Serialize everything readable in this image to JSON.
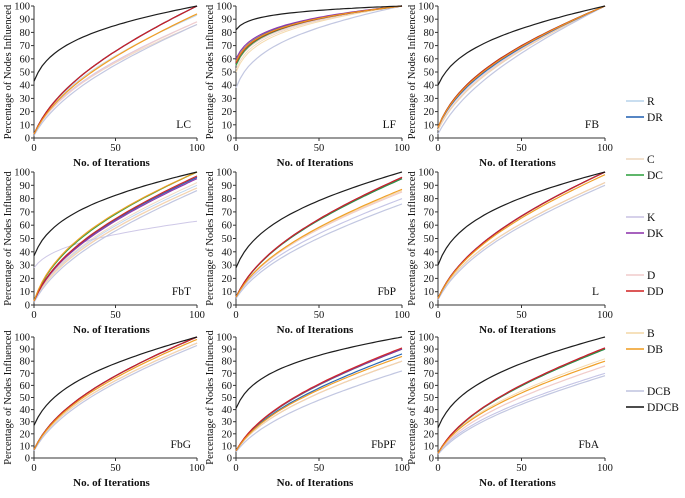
{
  "colors": {
    "R": "#b7d3ec",
    "DR": "#1f5fb0",
    "C": "#eed7bd",
    "DC": "#2a9d3a",
    "K": "#c9c2e4",
    "DK": "#8a2fa8",
    "D": "#f1cccc",
    "DD": "#d02020",
    "B": "#f4d7a6",
    "DB": "#ef9b1e",
    "DCB": "#bfc4df",
    "DDCB": "#111111"
  },
  "legend": [
    {
      "key": "R",
      "label": "R"
    },
    {
      "key": "DR",
      "label": "DR"
    },
    {
      "key": "C",
      "label": "C"
    },
    {
      "key": "DC",
      "label": "DC"
    },
    {
      "key": "K",
      "label": "K"
    },
    {
      "key": "DK",
      "label": "DK"
    },
    {
      "key": "D",
      "label": "D"
    },
    {
      "key": "DD",
      "label": "DD"
    },
    {
      "key": "B",
      "label": "B"
    },
    {
      "key": "DB",
      "label": "DB"
    },
    {
      "key": "DCB",
      "label": "DCB"
    },
    {
      "key": "DDCB",
      "label": "DDCB"
    }
  ],
  "chart_data": [
    {
      "type": "line",
      "title": "LC",
      "xlabel": "No. of Iterations",
      "ylabel": "Percentage of Nodes Influenced",
      "xlim": [
        0,
        100
      ],
      "ylim": [
        0,
        100
      ],
      "xticks": [
        0,
        50,
        100
      ],
      "yticks": [
        0,
        10,
        20,
        30,
        40,
        50,
        60,
        70,
        80,
        90,
        100
      ],
      "series": [
        {
          "name": "R",
          "start": 3,
          "end": 93,
          "k": 1.4
        },
        {
          "name": "DR",
          "start": 3,
          "end": 100,
          "k": 1.25
        },
        {
          "name": "C",
          "start": 3,
          "end": 86,
          "k": 1.3
        },
        {
          "name": "DC",
          "start": 3,
          "end": 100,
          "k": 1.25
        },
        {
          "name": "K",
          "start": 3,
          "end": 88,
          "k": 1.3
        },
        {
          "name": "DK",
          "start": 3,
          "end": 100,
          "k": 1.25
        },
        {
          "name": "D",
          "start": 3,
          "end": 88,
          "k": 1.2
        },
        {
          "name": "DD",
          "start": 3,
          "end": 100,
          "k": 1.25
        },
        {
          "name": "B",
          "start": 3,
          "end": 94,
          "k": 1.25
        },
        {
          "name": "DB",
          "start": 3,
          "end": 94,
          "k": 1.2
        },
        {
          "name": "DCB",
          "start": 2,
          "end": 86,
          "k": 1.1
        },
        {
          "name": "DDCB",
          "start": 43,
          "end": 100,
          "k": 2.6
        }
      ]
    },
    {
      "type": "line",
      "title": "LF",
      "xlabel": "No. of Iterations",
      "ylabel": "Percentage of Nodes Influenced",
      "xlim": [
        0,
        100
      ],
      "ylim": [
        0,
        100
      ],
      "xticks": [
        0,
        50,
        100
      ],
      "yticks": [
        0,
        10,
        20,
        30,
        40,
        50,
        60,
        70,
        80,
        90,
        100
      ],
      "series": [
        {
          "name": "R",
          "start": 55,
          "end": 100,
          "k": 3.0
        },
        {
          "name": "DR",
          "start": 58,
          "end": 100,
          "k": 3.2
        },
        {
          "name": "C",
          "start": 52,
          "end": 100,
          "k": 3.0
        },
        {
          "name": "DC",
          "start": 55,
          "end": 100,
          "k": 3.2
        },
        {
          "name": "K",
          "start": 55,
          "end": 100,
          "k": 3.0
        },
        {
          "name": "DK",
          "start": 60,
          "end": 100,
          "k": 3.2
        },
        {
          "name": "D",
          "start": 55,
          "end": 100,
          "k": 3.0
        },
        {
          "name": "DD",
          "start": 57,
          "end": 100,
          "k": 3.1
        },
        {
          "name": "B",
          "start": 50,
          "end": 100,
          "k": 2.9
        },
        {
          "name": "DB",
          "start": 58,
          "end": 100,
          "k": 3.1
        },
        {
          "name": "DCB",
          "start": 38,
          "end": 100,
          "k": 2.5
        },
        {
          "name": "DDCB",
          "start": 82,
          "end": 100,
          "k": 4.5
        }
      ]
    },
    {
      "type": "line",
      "title": "FB",
      "xlabel": "No. of Iterations",
      "ylabel": "Percentage of Nodes Influenced",
      "xlim": [
        0,
        100
      ],
      "ylim": [
        0,
        100
      ],
      "xticks": [
        0,
        50,
        100
      ],
      "yticks": [
        0,
        10,
        20,
        30,
        40,
        50,
        60,
        70,
        80,
        90,
        100
      ],
      "series": [
        {
          "name": "R",
          "start": 8,
          "end": 100,
          "k": 1.3
        },
        {
          "name": "DR",
          "start": 8,
          "end": 100,
          "k": 1.4
        },
        {
          "name": "C",
          "start": 8,
          "end": 100,
          "k": 1.5
        },
        {
          "name": "DC",
          "start": 8,
          "end": 100,
          "k": 1.6
        },
        {
          "name": "K",
          "start": 6,
          "end": 100,
          "k": 1.2
        },
        {
          "name": "DK",
          "start": 8,
          "end": 100,
          "k": 1.5
        },
        {
          "name": "D",
          "start": 6,
          "end": 100,
          "k": 1.3
        },
        {
          "name": "DD",
          "start": 8,
          "end": 100,
          "k": 1.6
        },
        {
          "name": "B",
          "start": 6,
          "end": 100,
          "k": 1.2
        },
        {
          "name": "DB",
          "start": 8,
          "end": 100,
          "k": 1.5
        },
        {
          "name": "DCB",
          "start": 3,
          "end": 100,
          "k": 1.05
        },
        {
          "name": "DDCB",
          "start": 40,
          "end": 100,
          "k": 2.2
        }
      ]
    },
    {
      "type": "line",
      "title": "FbT",
      "xlabel": "No. of Iterations",
      "ylabel": "Percentage of Nodes Influenced",
      "xlim": [
        0,
        100
      ],
      "ylim": [
        0,
        100
      ],
      "xticks": [
        0,
        50,
        100
      ],
      "yticks": [
        0,
        10,
        20,
        30,
        40,
        50,
        60,
        70,
        80,
        90,
        100
      ],
      "series": [
        {
          "name": "R",
          "start": 3,
          "end": 90,
          "k": 1.3
        },
        {
          "name": "DR",
          "start": 3,
          "end": 96,
          "k": 1.4
        },
        {
          "name": "C",
          "start": 3,
          "end": 92,
          "k": 1.3
        },
        {
          "name": "DC",
          "start": 3,
          "end": 100,
          "k": 1.6
        },
        {
          "name": "K",
          "start": 28,
          "end": 63,
          "k": 2.2
        },
        {
          "name": "DK",
          "start": 3,
          "end": 95,
          "k": 1.35
        },
        {
          "name": "D",
          "start": 3,
          "end": 88,
          "k": 1.25
        },
        {
          "name": "DD",
          "start": 3,
          "end": 97,
          "k": 1.4
        },
        {
          "name": "B",
          "start": 3,
          "end": 88,
          "k": 1.2
        },
        {
          "name": "DB",
          "start": 3,
          "end": 100,
          "k": 1.7
        },
        {
          "name": "DCB",
          "start": 2,
          "end": 86,
          "k": 1.15
        },
        {
          "name": "DDCB",
          "start": 37,
          "end": 100,
          "k": 2.3
        }
      ]
    },
    {
      "type": "line",
      "title": "FbP",
      "xlabel": "No. of Iterations",
      "ylabel": "Percentage of Nodes Influenced",
      "xlim": [
        0,
        100
      ],
      "ylim": [
        0,
        100
      ],
      "xticks": [
        0,
        50,
        100
      ],
      "yticks": [
        0,
        10,
        20,
        30,
        40,
        50,
        60,
        70,
        80,
        90,
        100
      ],
      "series": [
        {
          "name": "R",
          "start": 6,
          "end": 80,
          "k": 1.2
        },
        {
          "name": "DR",
          "start": 6,
          "end": 95,
          "k": 1.3
        },
        {
          "name": "C",
          "start": 6,
          "end": 85,
          "k": 1.25
        },
        {
          "name": "DC",
          "start": 6,
          "end": 95,
          "k": 1.3
        },
        {
          "name": "K",
          "start": 6,
          "end": 80,
          "k": 1.2
        },
        {
          "name": "DK",
          "start": 6,
          "end": 96,
          "k": 1.3
        },
        {
          "name": "D",
          "start": 6,
          "end": 85,
          "k": 1.25
        },
        {
          "name": "DD",
          "start": 6,
          "end": 96,
          "k": 1.3
        },
        {
          "name": "B",
          "start": 6,
          "end": 86,
          "k": 1.25
        },
        {
          "name": "DB",
          "start": 6,
          "end": 87,
          "k": 1.25
        },
        {
          "name": "DCB",
          "start": 5,
          "end": 76,
          "k": 1.15
        },
        {
          "name": "DDCB",
          "start": 28,
          "end": 100,
          "k": 2.0
        }
      ]
    },
    {
      "type": "line",
      "title": "L",
      "xlabel": "No. of Iterations",
      "ylabel": "Percentage of Nodes Influenced",
      "xlim": [
        0,
        100
      ],
      "ylim": [
        0,
        100
      ],
      "xticks": [
        0,
        50,
        100
      ],
      "yticks": [
        0,
        10,
        20,
        30,
        40,
        50,
        60,
        70,
        80,
        90,
        100
      ],
      "series": [
        {
          "name": "R",
          "start": 5,
          "end": 92,
          "k": 1.25
        },
        {
          "name": "DR",
          "start": 5,
          "end": 100,
          "k": 1.3
        },
        {
          "name": "C",
          "start": 5,
          "end": 92,
          "k": 1.25
        },
        {
          "name": "DC",
          "start": 5,
          "end": 100,
          "k": 1.3
        },
        {
          "name": "K",
          "start": 5,
          "end": 92,
          "k": 1.25
        },
        {
          "name": "DK",
          "start": 5,
          "end": 100,
          "k": 1.32
        },
        {
          "name": "D",
          "start": 5,
          "end": 92,
          "k": 1.25
        },
        {
          "name": "DD",
          "start": 5,
          "end": 100,
          "k": 1.3
        },
        {
          "name": "B",
          "start": 5,
          "end": 92,
          "k": 1.25
        },
        {
          "name": "DB",
          "start": 5,
          "end": 98,
          "k": 1.28
        },
        {
          "name": "DCB",
          "start": 4,
          "end": 90,
          "k": 1.2
        },
        {
          "name": "DDCB",
          "start": 30,
          "end": 100,
          "k": 2.3
        }
      ]
    },
    {
      "type": "line",
      "title": "FbG",
      "xlabel": "No. of Iterations",
      "ylabel": "Percentage of Nodes Influenced",
      "xlim": [
        0,
        100
      ],
      "ylim": [
        0,
        100
      ],
      "xticks": [
        0,
        50,
        100
      ],
      "yticks": [
        0,
        10,
        20,
        30,
        40,
        50,
        60,
        70,
        80,
        90,
        100
      ],
      "series": [
        {
          "name": "R",
          "start": 7,
          "end": 95,
          "k": 1.25
        },
        {
          "name": "DR",
          "start": 7,
          "end": 100,
          "k": 1.35
        },
        {
          "name": "C",
          "start": 7,
          "end": 95,
          "k": 1.25
        },
        {
          "name": "DC",
          "start": 7,
          "end": 100,
          "k": 1.35
        },
        {
          "name": "K",
          "start": 7,
          "end": 95,
          "k": 1.25
        },
        {
          "name": "DK",
          "start": 7,
          "end": 100,
          "k": 1.35
        },
        {
          "name": "D",
          "start": 7,
          "end": 95,
          "k": 1.25
        },
        {
          "name": "DD",
          "start": 7,
          "end": 100,
          "k": 1.35
        },
        {
          "name": "B",
          "start": 7,
          "end": 95,
          "k": 1.25
        },
        {
          "name": "DB",
          "start": 7,
          "end": 98,
          "k": 1.3
        },
        {
          "name": "DCB",
          "start": 6,
          "end": 93,
          "k": 1.2
        },
        {
          "name": "DDCB",
          "start": 27,
          "end": 100,
          "k": 2.0
        }
      ]
    },
    {
      "type": "line",
      "title": "FbPF",
      "xlabel": "No. of Iterations",
      "ylabel": "Percentage of Nodes Influenced",
      "xlim": [
        0,
        100
      ],
      "ylim": [
        0,
        100
      ],
      "xticks": [
        0,
        50,
        100
      ],
      "yticks": [
        0,
        10,
        20,
        30,
        40,
        50,
        60,
        70,
        80,
        90,
        100
      ],
      "series": [
        {
          "name": "R",
          "start": 6,
          "end": 80,
          "k": 1.2
        },
        {
          "name": "DR",
          "start": 6,
          "end": 86,
          "k": 1.25
        },
        {
          "name": "C",
          "start": 6,
          "end": 80,
          "k": 1.2
        },
        {
          "name": "DC",
          "start": 6,
          "end": 90,
          "k": 1.25
        },
        {
          "name": "K",
          "start": 6,
          "end": 80,
          "k": 1.2
        },
        {
          "name": "DK",
          "start": 6,
          "end": 90,
          "k": 1.28
        },
        {
          "name": "D",
          "start": 6,
          "end": 80,
          "k": 1.2
        },
        {
          "name": "DD",
          "start": 6,
          "end": 91,
          "k": 1.28
        },
        {
          "name": "B",
          "start": 6,
          "end": 80,
          "k": 1.2
        },
        {
          "name": "DB",
          "start": 6,
          "end": 84,
          "k": 1.25
        },
        {
          "name": "DCB",
          "start": 5,
          "end": 72,
          "k": 1.15
        },
        {
          "name": "DDCB",
          "start": 41,
          "end": 100,
          "k": 2.6
        }
      ]
    },
    {
      "type": "line",
      "title": "FbA",
      "xlabel": "No. of Iterations",
      "ylabel": "Percentage of Nodes Influenced",
      "xlim": [
        0,
        100
      ],
      "ylim": [
        0,
        100
      ],
      "xticks": [
        0,
        50,
        100
      ],
      "yticks": [
        0,
        10,
        20,
        30,
        40,
        50,
        60,
        70,
        80,
        90,
        100
      ],
      "series": [
        {
          "name": "R",
          "start": 4,
          "end": 70,
          "k": 1.15
        },
        {
          "name": "DR",
          "start": 4,
          "end": 90,
          "k": 1.25
        },
        {
          "name": "C",
          "start": 4,
          "end": 76,
          "k": 1.2
        },
        {
          "name": "DC",
          "start": 4,
          "end": 90,
          "k": 1.25
        },
        {
          "name": "K",
          "start": 4,
          "end": 70,
          "k": 1.15
        },
        {
          "name": "DK",
          "start": 4,
          "end": 91,
          "k": 1.25
        },
        {
          "name": "D",
          "start": 4,
          "end": 76,
          "k": 1.2
        },
        {
          "name": "DD",
          "start": 4,
          "end": 91,
          "k": 1.25
        },
        {
          "name": "B",
          "start": 4,
          "end": 82,
          "k": 1.4
        },
        {
          "name": "DB",
          "start": 4,
          "end": 80,
          "k": 1.35
        },
        {
          "name": "DCB",
          "start": 3,
          "end": 68,
          "k": 1.1
        },
        {
          "name": "DDCB",
          "start": 25,
          "end": 100,
          "k": 2.1
        }
      ]
    }
  ]
}
